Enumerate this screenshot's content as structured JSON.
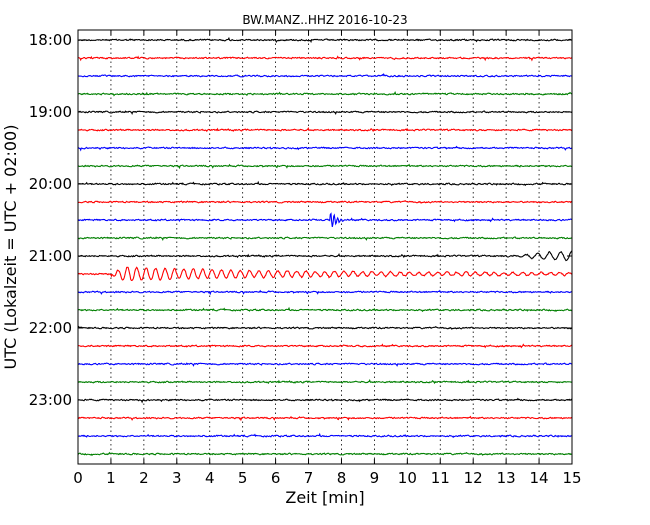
{
  "chart_data": {
    "type": "line",
    "title": "BW.MANZ..HHZ 2016-10-23",
    "xlabel": "Zeit  [min]",
    "ylabel": "UTC (Lokalzeit = UTC + 02:00)",
    "xlim": [
      0,
      15
    ],
    "xticks": [
      "0",
      "1",
      "2",
      "3",
      "4",
      "5",
      "6",
      "7",
      "8",
      "9",
      "10",
      "11",
      "12",
      "13",
      "14",
      "15"
    ],
    "yticks": [
      "18:00",
      "19:00",
      "20:00",
      "21:00",
      "22:00",
      "23:00"
    ],
    "grid": "vertical dotted lines at each minute",
    "trace_interval_min": 15,
    "trace_colors": [
      "#000000",
      "#ff0000",
      "#0000ff",
      "#007f00"
    ],
    "traces": [
      {
        "start": "18:00",
        "color": "#000000"
      },
      {
        "start": "18:15",
        "color": "#ff0000"
      },
      {
        "start": "18:30",
        "color": "#0000ff"
      },
      {
        "start": "18:45",
        "color": "#007f00"
      },
      {
        "start": "19:00",
        "color": "#000000"
      },
      {
        "start": "19:15",
        "color": "#ff0000"
      },
      {
        "start": "19:30",
        "color": "#0000ff"
      },
      {
        "start": "19:45",
        "color": "#007f00"
      },
      {
        "start": "20:00",
        "color": "#000000"
      },
      {
        "start": "20:15",
        "color": "#ff0000"
      },
      {
        "start": "20:30",
        "color": "#0000ff",
        "event": {
          "at_min": 7.7,
          "amplitude": "spike"
        }
      },
      {
        "start": "20:45",
        "color": "#007f00"
      },
      {
        "start": "21:00",
        "color": "#000000",
        "event": {
          "at_min": 13.0,
          "amplitude": "growing oscillation to end"
        }
      },
      {
        "start": "21:15",
        "color": "#ff0000",
        "event": {
          "at_min": 1.0,
          "amplitude": "large oscillating wave train"
        }
      },
      {
        "start": "21:30",
        "color": "#0000ff"
      },
      {
        "start": "21:45",
        "color": "#007f00"
      },
      {
        "start": "22:00",
        "color": "#000000"
      },
      {
        "start": "22:15",
        "color": "#ff0000"
      },
      {
        "start": "22:30",
        "color": "#0000ff"
      },
      {
        "start": "22:45",
        "color": "#007f00"
      },
      {
        "start": "23:00",
        "color": "#000000"
      },
      {
        "start": "23:15",
        "color": "#ff0000"
      },
      {
        "start": "23:30",
        "color": "#0000ff"
      },
      {
        "start": "23:45",
        "color": "#007f00"
      }
    ]
  }
}
